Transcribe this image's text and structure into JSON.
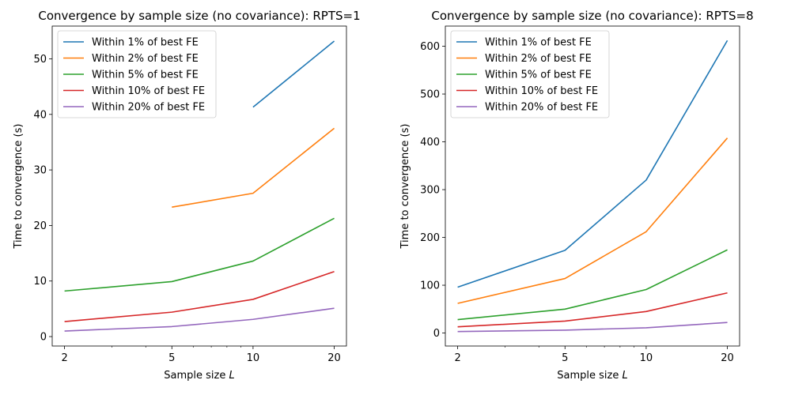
{
  "chart_data": [
    {
      "type": "line",
      "title": "Convergence by sample size (no covariance): RPTS=1",
      "xlabel": "Sample size ",
      "xlabel_var": "L",
      "ylabel": "Time to convergence (s)",
      "xscale": "log",
      "x": [
        2,
        5,
        10,
        20
      ],
      "xticks": [
        "2",
        "5",
        "10",
        "20"
      ],
      "xlim": [
        1.8,
        22.2
      ],
      "ylim": [
        -1.7,
        55.9
      ],
      "yticks": [
        0,
        10,
        20,
        30,
        40,
        50
      ],
      "legend": "upper-left",
      "series": [
        {
          "name": "Within 1% of best FE",
          "color": "#1f77b4",
          "values": [
            null,
            null,
            41.3,
            53.2
          ]
        },
        {
          "name": "Within 2% of best FE",
          "color": "#ff7f0e",
          "values": [
            null,
            23.3,
            25.8,
            37.5
          ]
        },
        {
          "name": "Within 5% of best FE",
          "color": "#2ca02c",
          "values": [
            8.2,
            9.9,
            13.6,
            21.3
          ]
        },
        {
          "name": "Within 10% of best FE",
          "color": "#d62728",
          "values": [
            2.7,
            4.4,
            6.7,
            11.7
          ]
        },
        {
          "name": "Within 20% of best FE",
          "color": "#9467bd",
          "values": [
            1.0,
            1.8,
            3.1,
            5.1
          ]
        }
      ]
    },
    {
      "type": "line",
      "title": "Convergence by sample size (no covariance): RPTS=8",
      "xlabel": "Sample size ",
      "xlabel_var": "L",
      "ylabel": "Time to convergence (s)",
      "xscale": "log",
      "x": [
        2,
        5,
        10,
        20
      ],
      "xticks": [
        "2",
        "5",
        "10",
        "20"
      ],
      "xlim": [
        1.8,
        22.2
      ],
      "ylim": [
        -27.2,
        642.2
      ],
      "yticks": [
        0,
        100,
        200,
        300,
        400,
        500,
        600
      ],
      "legend": "upper-left",
      "series": [
        {
          "name": "Within 1% of best FE",
          "color": "#1f77b4",
          "values": [
            96,
            173,
            320,
            612
          ]
        },
        {
          "name": "Within 2% of best FE",
          "color": "#ff7f0e",
          "values": [
            62,
            114,
            212,
            408
          ]
        },
        {
          "name": "Within 5% of best FE",
          "color": "#2ca02c",
          "values": [
            28,
            50,
            91,
            174
          ]
        },
        {
          "name": "Within 10% of best FE",
          "color": "#d62728",
          "values": [
            13,
            25,
            45,
            84
          ]
        },
        {
          "name": "Within 20% of best FE",
          "color": "#9467bd",
          "values": [
            3,
            6,
            11,
            22
          ]
        }
      ]
    }
  ]
}
